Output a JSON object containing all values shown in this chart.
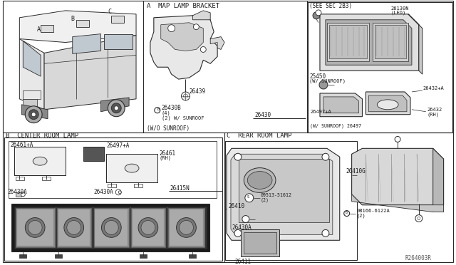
{
  "bg_color": "#ffffff",
  "line_color": "#2a2a2a",
  "text_color": "#1a1a1a",
  "fig_width": 6.4,
  "fig_height": 3.72,
  "dpi": 100,
  "watermark": "R264003R",
  "section_A_title": "A  MAP LAMP BRACKET",
  "section_B_title": "B  CENTER ROOM LAMP",
  "section_C_title": "C  REAR ROOM LAMP",
  "see_sec": "(SEE SEC 2B3)",
  "w_sunroof": "(W/ SUNROOF)",
  "wo_sunroof": "(W/O SUNROOF)",
  "p26439": "26439",
  "p26430B": "26430B",
  "p26430": "26430",
  "p26130N": "26130N",
  "pLED": "(LED)",
  "p25450": "25450",
  "p26432pA": "26432+A",
  "p26432": "26432",
  "pRH": "(RH)",
  "p26497pA": "26497+A",
  "p26497_ws": "(W/ SUNROOF) 26497",
  "p4": "(4)",
  "p2ws": "(2) W/ SUNROOF",
  "p26461pA": "26461+A",
  "p26461": "26461",
  "p26497pA_b": "26497+A",
  "p26430A_l": "26430A",
  "p26430A_r": "26430A",
  "p26415N": "26415N",
  "p09513": "09513-51612",
  "p2_c": "(2)",
  "p26430A_c": "26430A",
  "p26411": "26411",
  "p26410": "26410",
  "p26410G": "26410G",
  "p08166": "08166-6122A",
  "p2_s": "(2)"
}
